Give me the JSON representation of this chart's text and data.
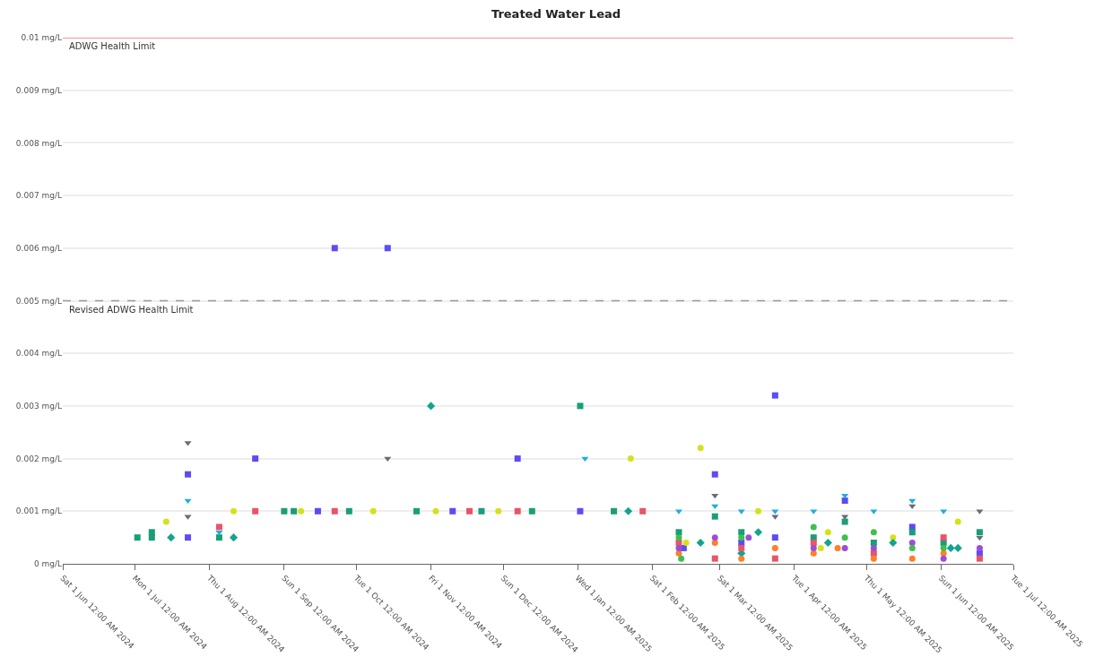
{
  "chart_data": {
    "type": "scatter",
    "title": "Treated Water Lead",
    "xlim": [
      "2024-06-01",
      "2025-07-01"
    ],
    "xticks": [
      {
        "value": "2024-06-01",
        "label": "Sat 1 Jun 12:00 AM 2024"
      },
      {
        "value": "2024-07-01",
        "label": "Mon 1 Jul 12:00 AM 2024"
      },
      {
        "value": "2024-08-01",
        "label": "Thu 1 Aug 12:00 AM 2024"
      },
      {
        "value": "2024-09-01",
        "label": "Sun 1 Sep 12:00 AM 2024"
      },
      {
        "value": "2024-10-01",
        "label": "Tue 1 Oct 12:00 AM 2024"
      },
      {
        "value": "2024-11-01",
        "label": "Fri 1 Nov 12:00 AM 2024"
      },
      {
        "value": "2024-12-01",
        "label": "Sun 1 Dec 12:00 AM 2024"
      },
      {
        "value": "2025-01-01",
        "label": "Wed 1 Jan 12:00 AM 2025"
      },
      {
        "value": "2025-02-01",
        "label": "Sat 1 Feb 12:00 AM 2025"
      },
      {
        "value": "2025-03-01",
        "label": "Sat 1 Mar 12:00 AM 2025"
      },
      {
        "value": "2025-04-01",
        "label": "Tue 1 Apr 12:00 AM 2025"
      },
      {
        "value": "2025-05-01",
        "label": "Thu 1 May 12:00 AM 2025"
      },
      {
        "value": "2025-06-01",
        "label": "Sun 1 Jun 12:00 AM 2025"
      },
      {
        "value": "2025-07-01",
        "label": "Tue 1 Jul 12:00 AM 2025"
      }
    ],
    "ylim": [
      0,
      0.01
    ],
    "yticks": [
      {
        "value": 0,
        "label": "0 mg/L"
      },
      {
        "value": 0.001,
        "label": "0.001 mg/L"
      },
      {
        "value": 0.002,
        "label": "0.002 mg/L"
      },
      {
        "value": 0.003,
        "label": "0.003 mg/L"
      },
      {
        "value": 0.004,
        "label": "0.004 mg/L"
      },
      {
        "value": 0.005,
        "label": "0.005 mg/L"
      },
      {
        "value": 0.006,
        "label": "0.006 mg/L"
      },
      {
        "value": 0.007,
        "label": "0.007 mg/L"
      },
      {
        "value": 0.008,
        "label": "0.008 mg/L"
      },
      {
        "value": 0.009,
        "label": "0.009 mg/L"
      },
      {
        "value": 0.01,
        "label": "0.01 mg/L"
      }
    ],
    "grid": "y",
    "ref_lines": [
      {
        "axis": "y",
        "value": 0.01,
        "label": "ADWG Health Limit",
        "color": "#f07070",
        "line_style": "solid"
      },
      {
        "axis": "y",
        "value": 0.005,
        "label": "Revised ADWG Health Limit",
        "color": "#999999",
        "line_style": "dashed"
      }
    ],
    "series": [
      {
        "color": "#5b4cf5",
        "marker": "square",
        "x": [
          "2024-07-23",
          "2024-07-23",
          "2024-08-20",
          "2024-09-15",
          "2024-09-22",
          "2024-10-14",
          "2024-11-10",
          "2024-12-07",
          "2025-01-02",
          "2025-02-27",
          "2025-03-24",
          "2025-03-24",
          "2025-04-22",
          "2025-05-20",
          "2025-06-17",
          "2025-02-14",
          "2025-03-10"
        ],
        "values": [
          0.0017,
          0.0005,
          0.002,
          0.001,
          0.006,
          0.006,
          0.001,
          0.002,
          0.001,
          0.0017,
          0.0032,
          0.0005,
          0.0012,
          0.0007,
          0.0002,
          0.0003,
          0.0004
        ]
      },
      {
        "color": "#1a9e78",
        "marker": "square",
        "x": [
          "2024-07-02",
          "2024-07-08",
          "2024-07-08",
          "2024-08-05",
          "2024-09-01",
          "2024-09-05",
          "2024-09-28",
          "2024-10-26",
          "2024-11-22",
          "2024-12-13",
          "2025-01-02",
          "2025-01-16",
          "2025-02-12",
          "2025-02-27",
          "2025-03-10",
          "2025-04-09",
          "2025-04-22",
          "2025-05-04",
          "2025-05-20",
          "2025-06-02",
          "2025-06-17"
        ],
        "values": [
          0.0005,
          0.0006,
          0.0005,
          0.0005,
          0.001,
          0.001,
          0.001,
          0.001,
          0.001,
          0.001,
          0.003,
          0.001,
          0.0006,
          0.0009,
          0.0006,
          0.0005,
          0.0008,
          0.0004,
          0.0006,
          0.0004,
          0.0006
        ]
      },
      {
        "color": "#d4e21a",
        "marker": "circle",
        "x": [
          "2024-07-14",
          "2024-08-11",
          "2024-09-08",
          "2024-10-08",
          "2024-11-03",
          "2024-11-29",
          "2025-01-23",
          "2025-02-21",
          "2025-03-17",
          "2025-04-15",
          "2025-05-12",
          "2025-06-08",
          "2025-02-15",
          "2025-04-12"
        ],
        "values": [
          0.0008,
          0.001,
          0.001,
          0.001,
          0.001,
          0.001,
          0.002,
          0.0022,
          0.001,
          0.0006,
          0.0005,
          0.0008,
          0.0004,
          0.0003
        ]
      },
      {
        "color": "#1ab0e0",
        "marker": "triangle",
        "x": [
          "2024-07-23",
          "2024-08-05",
          "2025-01-04",
          "2025-02-12",
          "2025-02-27",
          "2025-03-10",
          "2025-03-24",
          "2025-04-09",
          "2025-04-22",
          "2025-05-04",
          "2025-05-20",
          "2025-06-02"
        ],
        "values": [
          0.0012,
          0.0006,
          0.002,
          0.001,
          0.0011,
          0.001,
          0.001,
          0.001,
          0.0013,
          0.001,
          0.0012,
          0.001
        ]
      },
      {
        "color": "#6b6b7b",
        "marker": "triangle",
        "x": [
          "2024-07-23",
          "2024-07-23",
          "2024-10-14",
          "2025-02-27",
          "2025-03-24",
          "2025-04-22",
          "2025-05-20",
          "2025-06-17",
          "2025-06-17"
        ],
        "values": [
          0.0023,
          0.0009,
          0.002,
          0.0013,
          0.0009,
          0.0009,
          0.0011,
          0.001,
          0.0005
        ]
      },
      {
        "color": "#14a38f",
        "marker": "diamond",
        "x": [
          "2024-07-16",
          "2024-08-11",
          "2024-11-01",
          "2025-01-22",
          "2025-02-21",
          "2025-03-17",
          "2025-04-15",
          "2025-05-12",
          "2025-06-08",
          "2025-03-10",
          "2025-06-05"
        ],
        "values": [
          0.0005,
          0.0005,
          0.003,
          0.001,
          0.0004,
          0.0006,
          0.0004,
          0.0004,
          0.0003,
          0.0002,
          0.0003
        ]
      },
      {
        "color": "#e8556a",
        "marker": "square",
        "x": [
          "2024-08-05",
          "2024-08-20",
          "2024-09-22",
          "2024-11-17",
          "2024-12-07",
          "2025-01-28",
          "2025-02-12",
          "2025-02-27",
          "2025-03-10",
          "2025-03-24",
          "2025-04-09",
          "2025-05-04",
          "2025-06-02",
          "2025-06-17"
        ],
        "values": [
          0.0007,
          0.001,
          0.001,
          0.001,
          0.001,
          0.001,
          0.0004,
          0.0001,
          0.0003,
          0.0001,
          0.0004,
          0.0002,
          0.0005,
          0.0001
        ]
      },
      {
        "color": "#ff7f2a",
        "marker": "circle",
        "x": [
          "2025-02-12",
          "2025-02-27",
          "2025-03-10",
          "2025-03-24",
          "2025-04-09",
          "2025-04-19",
          "2025-05-04",
          "2025-05-20",
          "2025-06-02"
        ],
        "values": [
          0.0002,
          0.0004,
          0.0001,
          0.0003,
          0.0002,
          0.0003,
          0.0001,
          0.0001,
          0.0002
        ]
      },
      {
        "color": "#9b4fd6",
        "marker": "circle",
        "x": [
          "2025-02-12",
          "2025-02-27",
          "2025-03-13",
          "2025-04-09",
          "2025-04-22",
          "2025-05-04",
          "2025-05-20",
          "2025-06-02",
          "2025-06-17"
        ],
        "values": [
          0.0003,
          0.0005,
          0.0005,
          0.0003,
          0.0003,
          0.0003,
          0.0004,
          0.0001,
          0.0003
        ]
      },
      {
        "color": "#3fbf4f",
        "marker": "circle",
        "x": [
          "2025-02-12",
          "2025-03-10",
          "2025-04-09",
          "2025-04-22",
          "2025-05-04",
          "2025-05-20",
          "2025-06-02",
          "2025-02-13"
        ],
        "values": [
          0.0005,
          0.0005,
          0.0007,
          0.0005,
          0.0006,
          0.0003,
          0.0003,
          0.0001
        ]
      }
    ]
  }
}
